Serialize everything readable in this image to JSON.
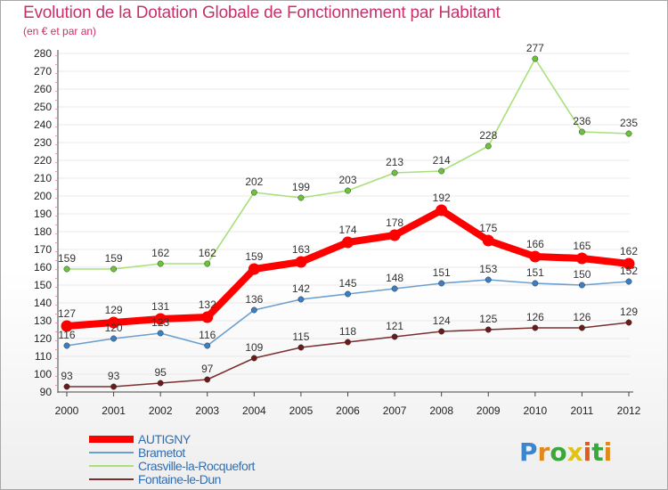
{
  "header": {
    "title": "Evolution de la Dotation Globale de Fonctionnement par Habitant",
    "subtitle": "(en € et par an)"
  },
  "logo": {
    "text": "Proxiti",
    "letters": [
      "P",
      "r",
      "o",
      "x",
      "i",
      "t",
      "i"
    ]
  },
  "colors": {
    "title": "#c8306a",
    "axis_text": "#222222",
    "legend_text": "#2f6fb4",
    "grid": "#e8e8e8"
  },
  "chart_data": {
    "type": "line",
    "title": "Evolution de la Dotation Globale de Fonctionnement par Habitant",
    "subtitle": "(en € et par an)",
    "xlabel": "",
    "ylabel": "",
    "x": [
      "2000",
      "2001",
      "2002",
      "2003",
      "2004",
      "2005",
      "2006",
      "2007",
      "2008",
      "2009",
      "2010",
      "2011",
      "2012"
    ],
    "ylim": [
      90,
      280
    ],
    "yticks": [
      90,
      100,
      110,
      120,
      130,
      140,
      150,
      160,
      170,
      180,
      190,
      200,
      210,
      220,
      230,
      240,
      250,
      260,
      270,
      280
    ],
    "grid": true,
    "legend_position": "bottom-left",
    "series": [
      {
        "name": "AUTIGNY",
        "color": "#ff0000",
        "emphasis": true,
        "values": [
          127,
          129,
          131,
          132,
          159,
          163,
          174,
          178,
          192,
          175,
          166,
          165,
          162
        ],
        "labels": [
          "127",
          "129",
          "131",
          "132",
          "159",
          "163",
          "174",
          "178",
          "192",
          "175",
          "166",
          "165",
          "162"
        ]
      },
      {
        "name": "Brametot",
        "color": "#6a9fcf",
        "marker": "#3a7fc4",
        "emphasis": false,
        "values": [
          116,
          120,
          123,
          116,
          136,
          142,
          145,
          148,
          151,
          153,
          151,
          150,
          152
        ],
        "labels": [
          "116",
          "120",
          "123",
          "116",
          "136",
          "142",
          "145",
          "148",
          "151",
          "153",
          "151",
          "150",
          "152"
        ]
      },
      {
        "name": "Crasville-la-Rocquefort",
        "color": "#a8e07a",
        "marker": "#6cc23a",
        "emphasis": false,
        "values": [
          159,
          159,
          162,
          162,
          202,
          199,
          203,
          213,
          214,
          228,
          277,
          236,
          235
        ],
        "labels": [
          "159",
          "159",
          "162",
          "162",
          "202",
          "199",
          "203",
          "213",
          "214",
          "228",
          "277",
          "236",
          "235"
        ]
      },
      {
        "name": "Fontaine-le-Dun",
        "color": "#7a3030",
        "marker": "#6a1a1a",
        "emphasis": false,
        "values": [
          93,
          93,
          95,
          97,
          109,
          115,
          118,
          121,
          124,
          125,
          126,
          126,
          129
        ],
        "labels": [
          "93",
          "93",
          "95",
          "97",
          "109",
          "115",
          "118",
          "121",
          "124",
          "125",
          "126",
          "126",
          "129"
        ]
      }
    ]
  }
}
